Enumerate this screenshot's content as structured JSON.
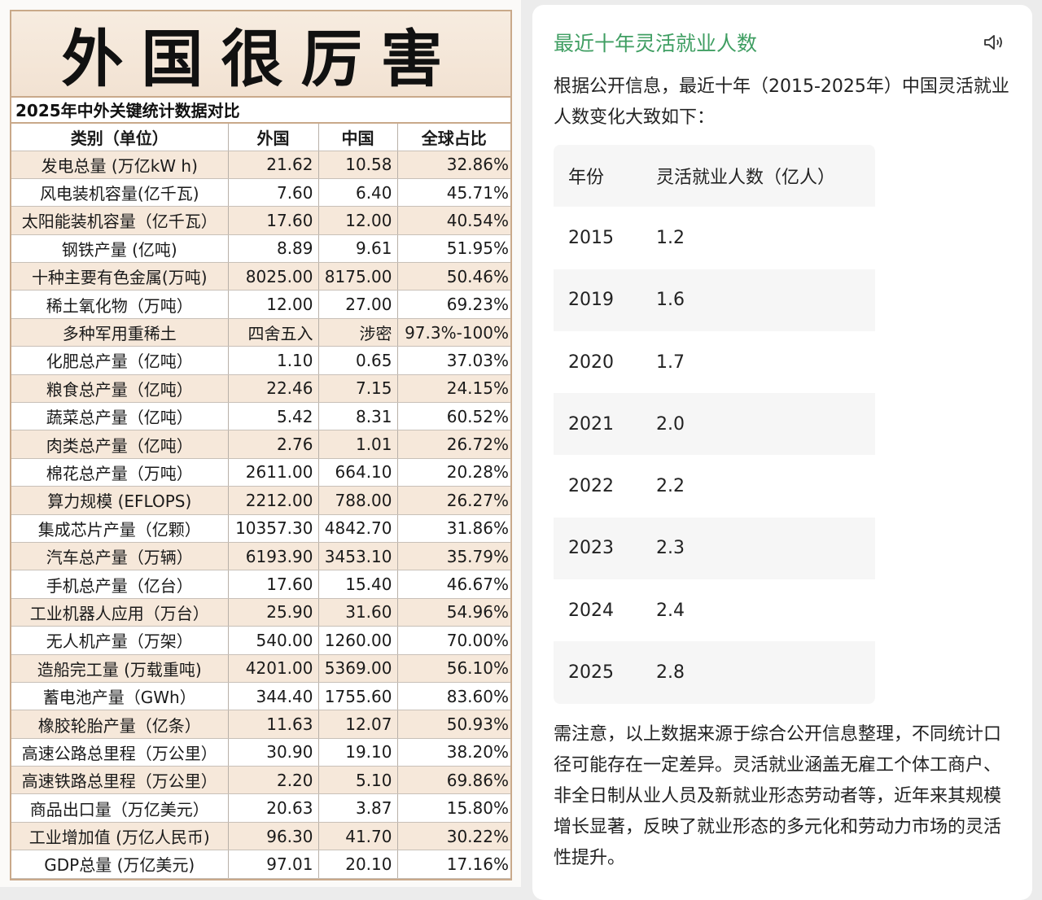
{
  "left": {
    "title": "外国很厉害",
    "subtitle": "2025年中外关键统计数据对比",
    "headers": [
      "类别（单位）",
      "外国",
      "中国",
      "全球占比"
    ],
    "rows": [
      [
        "发电总量 (万亿kW h)",
        "21.62",
        "10.58",
        "32.86%"
      ],
      [
        "风电装机容量(亿千瓦)",
        "7.60",
        "6.40",
        "45.71%"
      ],
      [
        "太阳能装机容量（亿千瓦）",
        "17.60",
        "12.00",
        "40.54%"
      ],
      [
        "钢铁产量 (亿吨)",
        "8.89",
        "9.61",
        "51.95%"
      ],
      [
        "十种主要有色金属(万吨)",
        "8025.00",
        "8175.00",
        "50.46%"
      ],
      [
        "稀土氧化物（万吨）",
        "12.00",
        "27.00",
        "69.23%"
      ],
      [
        "多种军用重稀土",
        "四舍五入",
        "涉密",
        "97.3%-100%"
      ],
      [
        "化肥总产量（亿吨）",
        "1.10",
        "0.65",
        "37.03%"
      ],
      [
        "粮食总产量（亿吨）",
        "22.46",
        "7.15",
        "24.15%"
      ],
      [
        "蔬菜总产量（亿吨）",
        "5.42",
        "8.31",
        "60.52%"
      ],
      [
        "肉类总产量（亿吨）",
        "2.76",
        "1.01",
        "26.72%"
      ],
      [
        "棉花总产量（万吨）",
        "2611.00",
        "664.10",
        "20.28%"
      ],
      [
        "算力规模 (EFLOPS)",
        "2212.00",
        "788.00",
        "26.27%"
      ],
      [
        "集成芯片产量（亿颗）",
        "10357.30",
        "4842.70",
        "31.86%"
      ],
      [
        "汽车总产量（万辆）",
        "6193.90",
        "3453.10",
        "35.79%"
      ],
      [
        "手机总产量（亿台）",
        "17.60",
        "15.40",
        "46.67%"
      ],
      [
        "工业机器人应用（万台）",
        "25.90",
        "31.60",
        "54.96%"
      ],
      [
        "无人机产量（万架）",
        "540.00",
        "1260.00",
        "70.00%"
      ],
      [
        "造船完工量 (万载重吨)",
        "4201.00",
        "5369.00",
        "56.10%"
      ],
      [
        "蓄电池产量（GWh）",
        "344.40",
        "1755.60",
        "83.60%"
      ],
      [
        "橡胶轮胎产量（亿条）",
        "11.63",
        "12.07",
        "50.93%"
      ],
      [
        "高速公路总里程（万公里）",
        "30.90",
        "19.10",
        "38.20%"
      ],
      [
        "高速铁路总里程（万公里）",
        "2.20",
        "5.10",
        "69.86%"
      ],
      [
        "商品出口量（万亿美元）",
        "20.63",
        "3.87",
        "15.80%"
      ],
      [
        "工业增加值 (万亿人民币)",
        "96.30",
        "41.70",
        "30.22%"
      ],
      [
        "GDP总量 (万亿美元)",
        "97.01",
        "20.10",
        "17.16%"
      ]
    ],
    "colors": {
      "border": "#c9a98a",
      "beige_row": "#f6e8da"
    }
  },
  "right": {
    "title": "最近十年灵活就业人数",
    "speaker_icon": "speaker-icon",
    "intro": "根据公开信息，最近十年（2015-2025年）中国灵活就业人数变化大致如下：",
    "table": {
      "headers": [
        "年份",
        "灵活就业人数（亿人）"
      ],
      "rows": [
        [
          "2015",
          "1.2"
        ],
        [
          "2019",
          "1.6"
        ],
        [
          "2020",
          "1.7"
        ],
        [
          "2021",
          "2.0"
        ],
        [
          "2022",
          "2.2"
        ],
        [
          "2023",
          "2.3"
        ],
        [
          "2024",
          "2.4"
        ],
        [
          "2025",
          "2.8"
        ]
      ]
    },
    "note": "需注意，以上数据来源于综合公开信息整理，不同统计口径可能存在一定差异。灵活就业涵盖无雇工个体工商户、非全日制从业人员及新就业形态劳动者等，近年来其规模增长显著，反映了就业形态的多元化和劳动力市场的灵活性提升。",
    "colors": {
      "title": "#3f9e62"
    }
  }
}
